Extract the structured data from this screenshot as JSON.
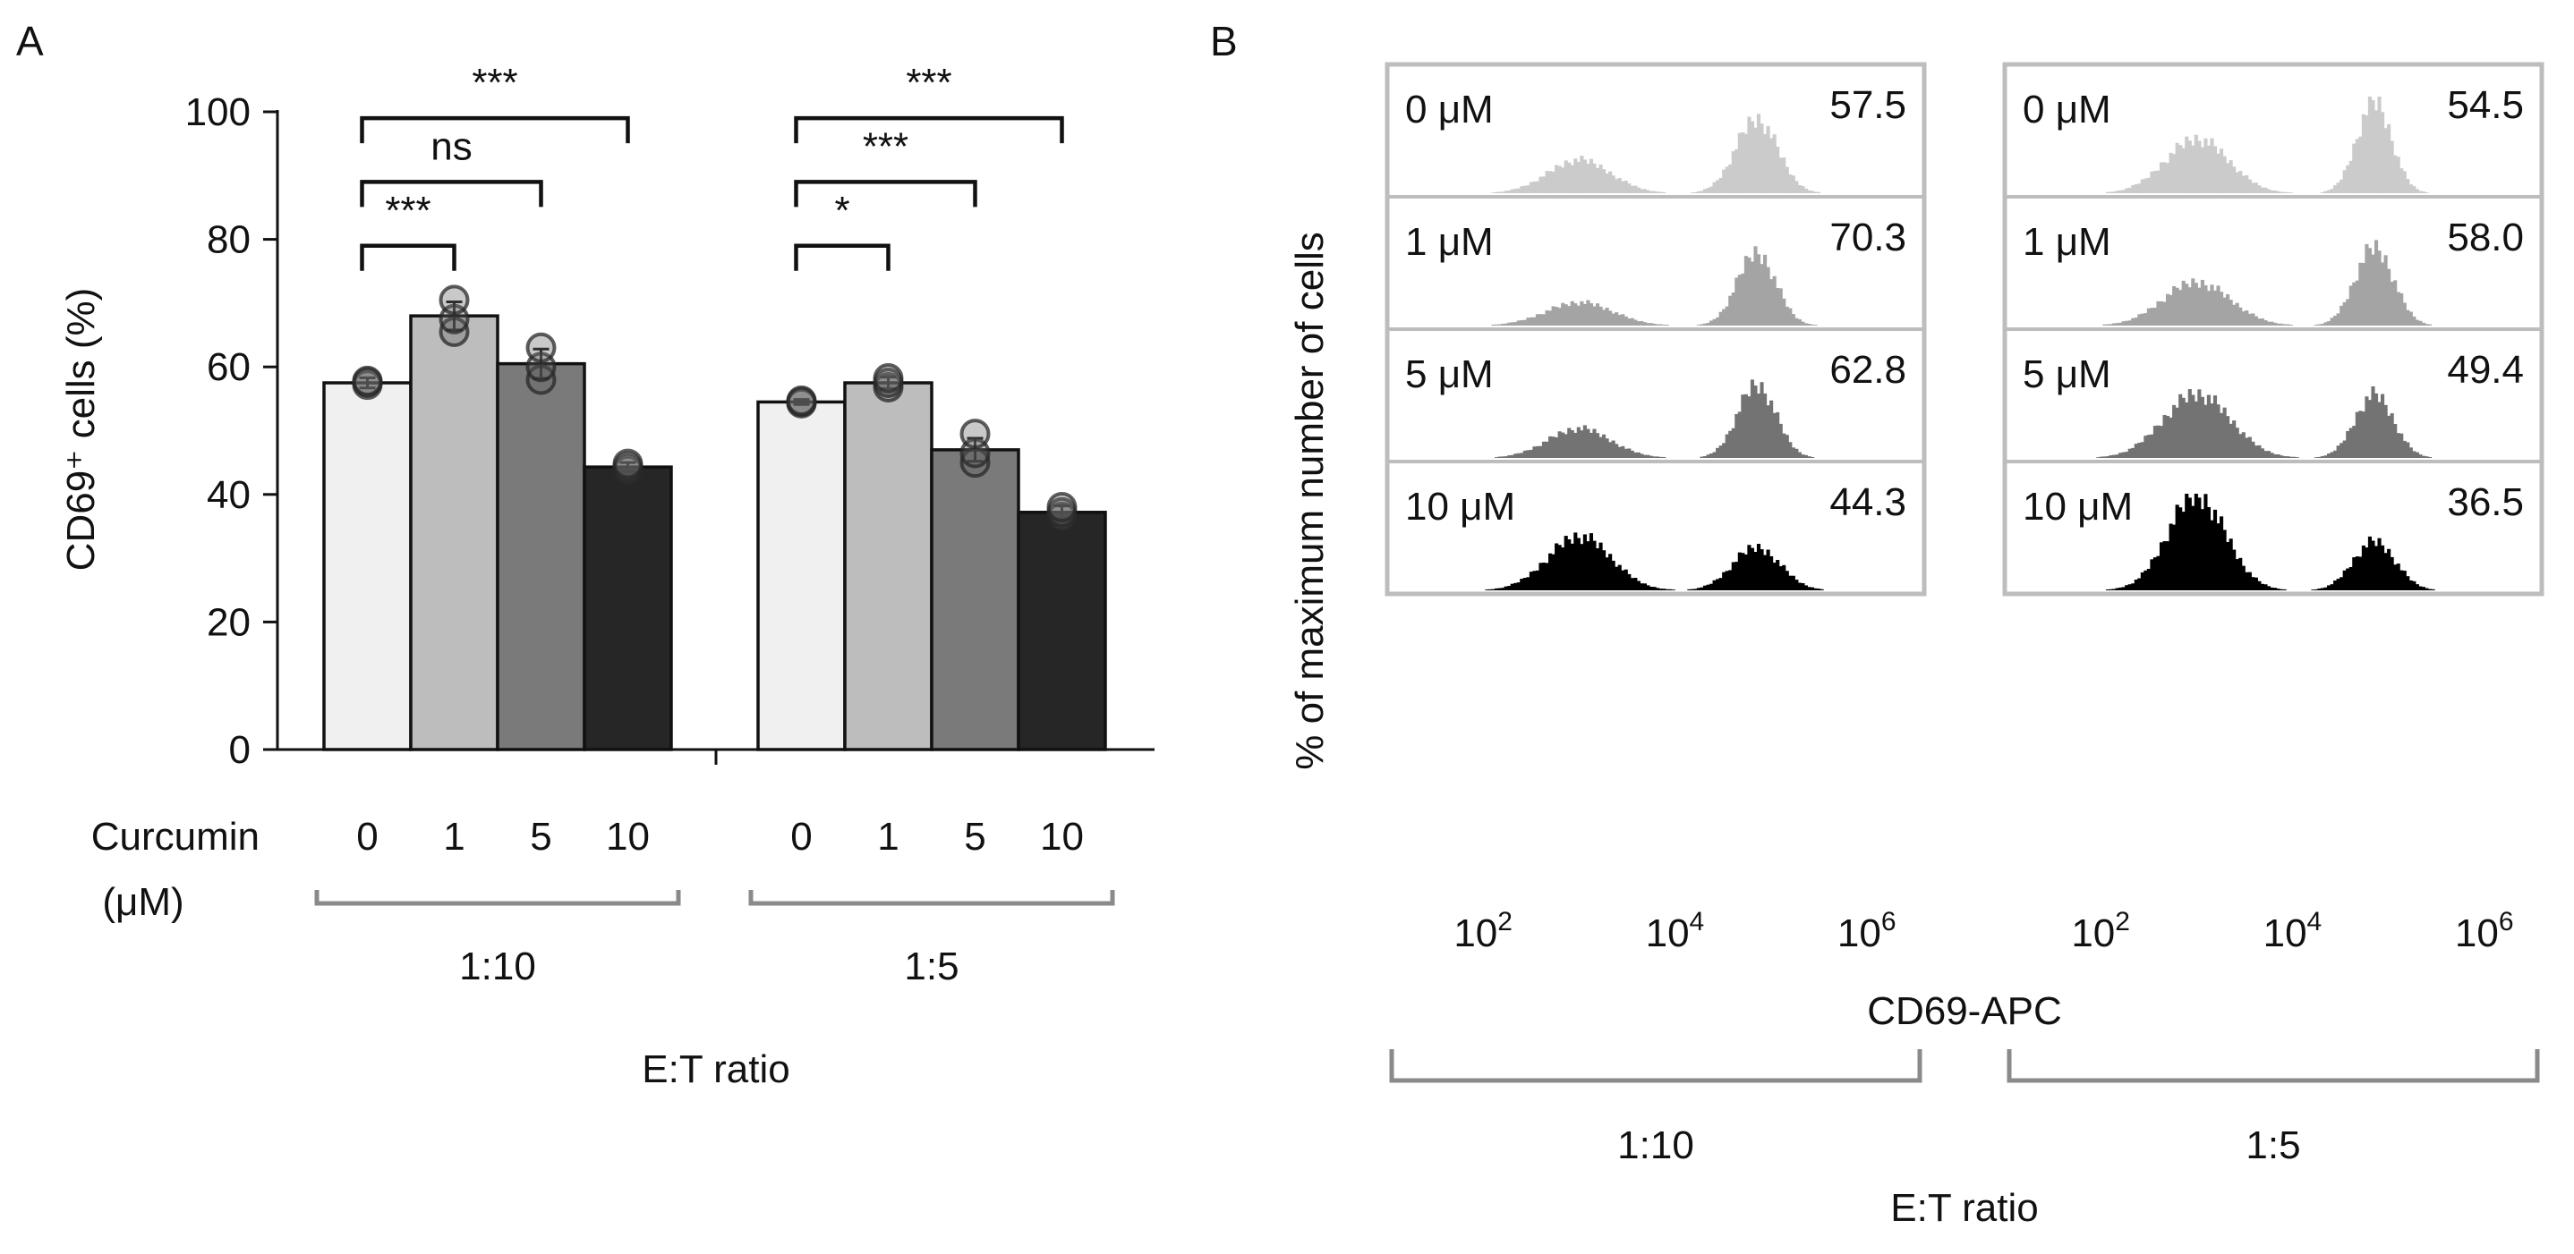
{
  "chart_data": [
    {
      "type": "bar",
      "panel": "A",
      "ylabel": "CD69⁺ cells (%)",
      "ylim": [
        0,
        100
      ],
      "yticks": [
        0,
        20,
        40,
        60,
        80,
        100
      ],
      "curcumin_label": "Curcumin",
      "unit_label": "(μM)",
      "xlabel": "E:T ratio",
      "bar_colors": [
        "#f0f0f0",
        "#bdbdbd",
        "#7a7a7a",
        "#262626"
      ],
      "groups": [
        {
          "ratio": "1:10",
          "categories": [
            "0",
            "1",
            "5",
            "10"
          ],
          "values": [
            57.5,
            68,
            60.5,
            44.3
          ],
          "errors": [
            0.8,
            2.2,
            2.3,
            0.7
          ],
          "points": [
            [
              57.2,
              57.6,
              57.8
            ],
            [
              65.5,
              67.5,
              70.5
            ],
            [
              58,
              60,
              63
            ],
            [
              43.8,
              44.3,
              44.8
            ]
          ],
          "comparisons": [
            {
              "from": 0,
              "to": 1,
              "label": "***"
            },
            {
              "from": 0,
              "to": 2,
              "label": "ns"
            },
            {
              "from": 0,
              "to": 3,
              "label": "***"
            }
          ]
        },
        {
          "ratio": "1:5",
          "categories": [
            "0",
            "1",
            "5",
            "10"
          ],
          "values": [
            54.5,
            57.5,
            47,
            37.2
          ],
          "errors": [
            0.4,
            0.9,
            1.8,
            1.0
          ],
          "points": [
            [
              54.3,
              54.5,
              54.7
            ],
            [
              56.8,
              57.5,
              58.2
            ],
            [
              45,
              46.5,
              49.5
            ],
            [
              36.5,
              37.2,
              38
            ]
          ],
          "comparisons": [
            {
              "from": 0,
              "to": 1,
              "label": "*"
            },
            {
              "from": 0,
              "to": 2,
              "label": "***"
            },
            {
              "from": 0,
              "to": 3,
              "label": "***"
            }
          ]
        }
      ]
    },
    {
      "type": "histogram",
      "panel": "B",
      "ylabel": "% of maximum number of cells",
      "xlabel": "CD69-APC",
      "ratio_label": "E:T ratio",
      "xticks": [
        {
          "base": "10",
          "exp": "2",
          "log": 2
        },
        {
          "base": "10",
          "exp": "4",
          "log": 4
        },
        {
          "base": "10",
          "exp": "6",
          "log": 6
        }
      ],
      "xlim_log": [
        1,
        6.6
      ],
      "shade_colors": [
        "#cbcbcb",
        "#a4a4a4",
        "#737373",
        "#000000"
      ],
      "columns": [
        {
          "ratio": "1:10",
          "rows": [
            {
              "dose": "0 μM",
              "percent": "57.5",
              "peaks": [
                {
                  "log": 3.0,
                  "sd": 0.33,
                  "height": 0.34
                },
                {
                  "log": 4.85,
                  "sd": 0.22,
                  "height": 0.76
                }
              ]
            },
            {
              "dose": "1 μM",
              "percent": "70.3",
              "peaks": [
                {
                  "log": 3.0,
                  "sd": 0.35,
                  "height": 0.24
                },
                {
                  "log": 4.85,
                  "sd": 0.2,
                  "height": 0.75
                }
              ]
            },
            {
              "dose": "5 μM",
              "percent": "62.8",
              "peaks": [
                {
                  "log": 3.0,
                  "sd": 0.33,
                  "height": 0.3
                },
                {
                  "log": 4.85,
                  "sd": 0.2,
                  "height": 0.75
                }
              ]
            },
            {
              "dose": "10 μM",
              "percent": "44.3",
              "peaks": [
                {
                  "log": 3.0,
                  "sd": 0.33,
                  "height": 0.56
                },
                {
                  "log": 4.85,
                  "sd": 0.25,
                  "height": 0.44
                }
              ]
            }
          ]
        },
        {
          "ratio": "1:5",
          "rows": [
            {
              "dose": "0 μM",
              "percent": "54.5",
              "peaks": [
                {
                  "log": 3.0,
                  "sd": 0.33,
                  "height": 0.56
                },
                {
                  "log": 4.85,
                  "sd": 0.18,
                  "height": 0.95
                }
              ]
            },
            {
              "dose": "1 μM",
              "percent": "58.0",
              "peaks": [
                {
                  "log": 3.0,
                  "sd": 0.35,
                  "height": 0.45
                },
                {
                  "log": 4.85,
                  "sd": 0.2,
                  "height": 0.8
                }
              ]
            },
            {
              "dose": "5 μM",
              "percent": "49.4",
              "peaks": [
                {
                  "log": 3.0,
                  "sd": 0.35,
                  "height": 0.66
                },
                {
                  "log": 4.85,
                  "sd": 0.2,
                  "height": 0.66
                }
              ]
            },
            {
              "dose": "10 μM",
              "percent": "36.5",
              "peaks": [
                {
                  "log": 3.0,
                  "sd": 0.3,
                  "height": 0.98
                },
                {
                  "log": 4.85,
                  "sd": 0.22,
                  "height": 0.5
                }
              ]
            }
          ]
        }
      ]
    }
  ]
}
